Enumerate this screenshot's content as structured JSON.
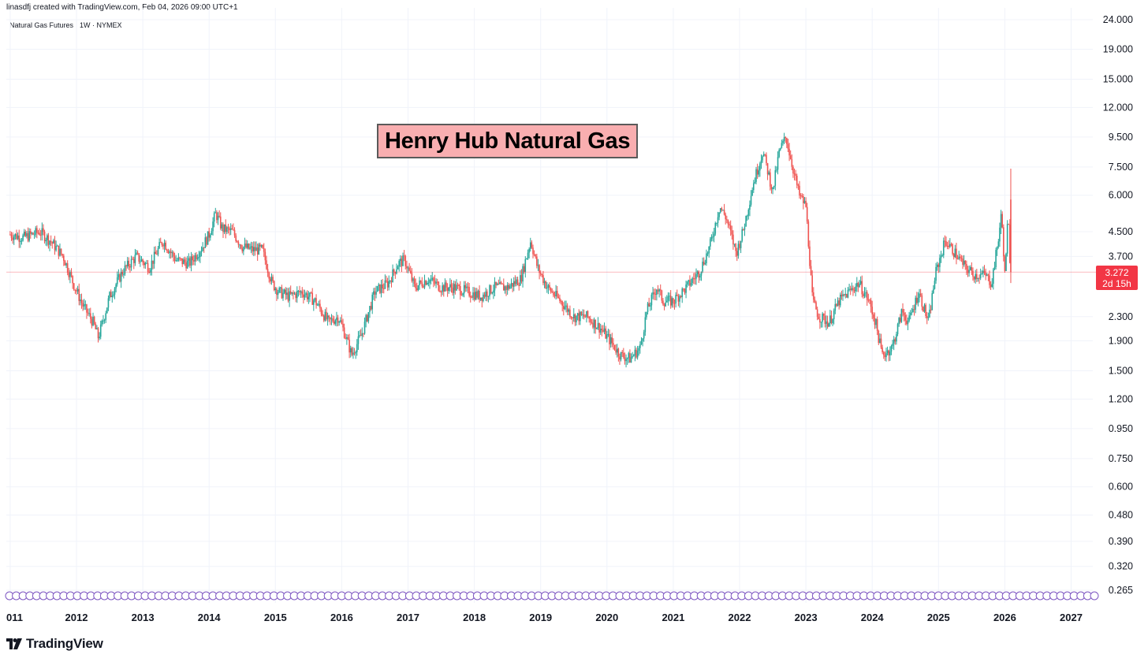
{
  "header": {
    "credit": "linasdfj created with TradingView.com, Feb 04, 2026 09:00 UTC+1",
    "symbol": "Natural Gas Futures · 1W · NYMEX"
  },
  "annotation": {
    "title": "Henry Hub Natural Gas"
  },
  "price_tag": {
    "price": "3.272",
    "countdown": "2d 15h",
    "color": "#f23645"
  },
  "footer": {
    "brand": "TradingView"
  },
  "colors": {
    "up": "#26a69a",
    "down": "#ef5350",
    "grid": "#f0f3fa",
    "events": "#7e57c2"
  },
  "chart_data": {
    "type": "line",
    "scale": "log",
    "grid": true,
    "ylim": [
      0.265,
      24
    ],
    "y_ticks": [
      "24.000",
      "19.000",
      "15.000",
      "12.000",
      "9.500",
      "7.500",
      "6.000",
      "4.500",
      "3.700",
      "3.272",
      "2.300",
      "1.900",
      "1.500",
      "1.200",
      "0.950",
      "0.750",
      "0.600",
      "0.480",
      "0.390",
      "0.320",
      "0.265"
    ],
    "x_ticks": [
      "011",
      "2012",
      "2013",
      "2014",
      "2015",
      "2016",
      "2017",
      "2018",
      "2019",
      "2020",
      "2021",
      "2022",
      "2023",
      "2024",
      "2025",
      "2026",
      "2027"
    ],
    "series": [
      {
        "x": [
          2011.0,
          2011.2,
          2011.45,
          2011.6,
          2011.8,
          2011.95,
          2012.1,
          2012.25,
          2012.33,
          2012.5,
          2012.7,
          2012.9,
          2013.1,
          2013.3,
          2013.5,
          2013.7,
          2013.9,
          2014.0,
          2014.1,
          2014.2,
          2014.35,
          2014.5,
          2014.65,
          2014.8,
          2014.95,
          2015.05,
          2015.2,
          2015.4,
          2015.6,
          2015.8,
          2015.95,
          2016.05,
          2016.15,
          2016.3,
          2016.5,
          2016.7,
          2016.85,
          2016.95,
          2017.1,
          2017.3,
          2017.5,
          2017.7,
          2017.9,
          2018.1,
          2018.3,
          2018.5,
          2018.7,
          2018.85,
          2018.95,
          2019.1,
          2019.3,
          2019.5,
          2019.7,
          2019.9,
          2020.05,
          2020.2,
          2020.35,
          2020.5,
          2020.6,
          2020.75,
          2020.85,
          2021.0,
          2021.2,
          2021.4,
          2021.55,
          2021.7,
          2021.8,
          2021.95,
          2022.05,
          2022.2,
          2022.35,
          2022.5,
          2022.6,
          2022.7,
          2022.8,
          2022.9,
          2023.0,
          2023.05,
          2023.1,
          2023.2,
          2023.35,
          2023.5,
          2023.65,
          2023.8,
          2023.95,
          2024.05,
          2024.15,
          2024.3,
          2024.45,
          2024.55,
          2024.7,
          2024.85,
          2024.95,
          2025.1,
          2025.25,
          2025.4,
          2025.55,
          2025.7,
          2025.8,
          2025.9,
          2025.95,
          2026.0,
          2026.05,
          2026.08
        ],
        "y": [
          4.4,
          4.3,
          4.5,
          4.2,
          3.7,
          3.0,
          2.5,
          2.2,
          1.95,
          2.7,
          3.3,
          3.7,
          3.4,
          4.2,
          3.6,
          3.5,
          4.0,
          4.4,
          5.2,
          4.6,
          4.5,
          4.0,
          3.9,
          3.9,
          3.0,
          2.8,
          2.7,
          2.8,
          2.6,
          2.2,
          2.3,
          2.0,
          1.7,
          2.0,
          2.8,
          3.0,
          3.5,
          3.6,
          2.9,
          3.1,
          2.9,
          2.9,
          2.8,
          2.7,
          2.9,
          2.9,
          3.1,
          4.2,
          3.4,
          2.9,
          2.6,
          2.3,
          2.3,
          2.1,
          1.9,
          1.7,
          1.65,
          1.8,
          2.4,
          2.9,
          2.6,
          2.6,
          2.9,
          3.3,
          4.0,
          5.5,
          5.0,
          3.8,
          4.5,
          6.5,
          8.5,
          6.2,
          8.5,
          9.5,
          7.5,
          6.0,
          5.5,
          3.8,
          2.6,
          2.3,
          2.2,
          2.6,
          2.8,
          3.0,
          2.6,
          2.2,
          1.7,
          1.8,
          2.4,
          2.2,
          2.8,
          2.2,
          3.2,
          4.2,
          3.8,
          3.4,
          3.2,
          3.2,
          3.0,
          4.2,
          5.2,
          3.2,
          5.2,
          3.27
        ]
      }
    ]
  }
}
